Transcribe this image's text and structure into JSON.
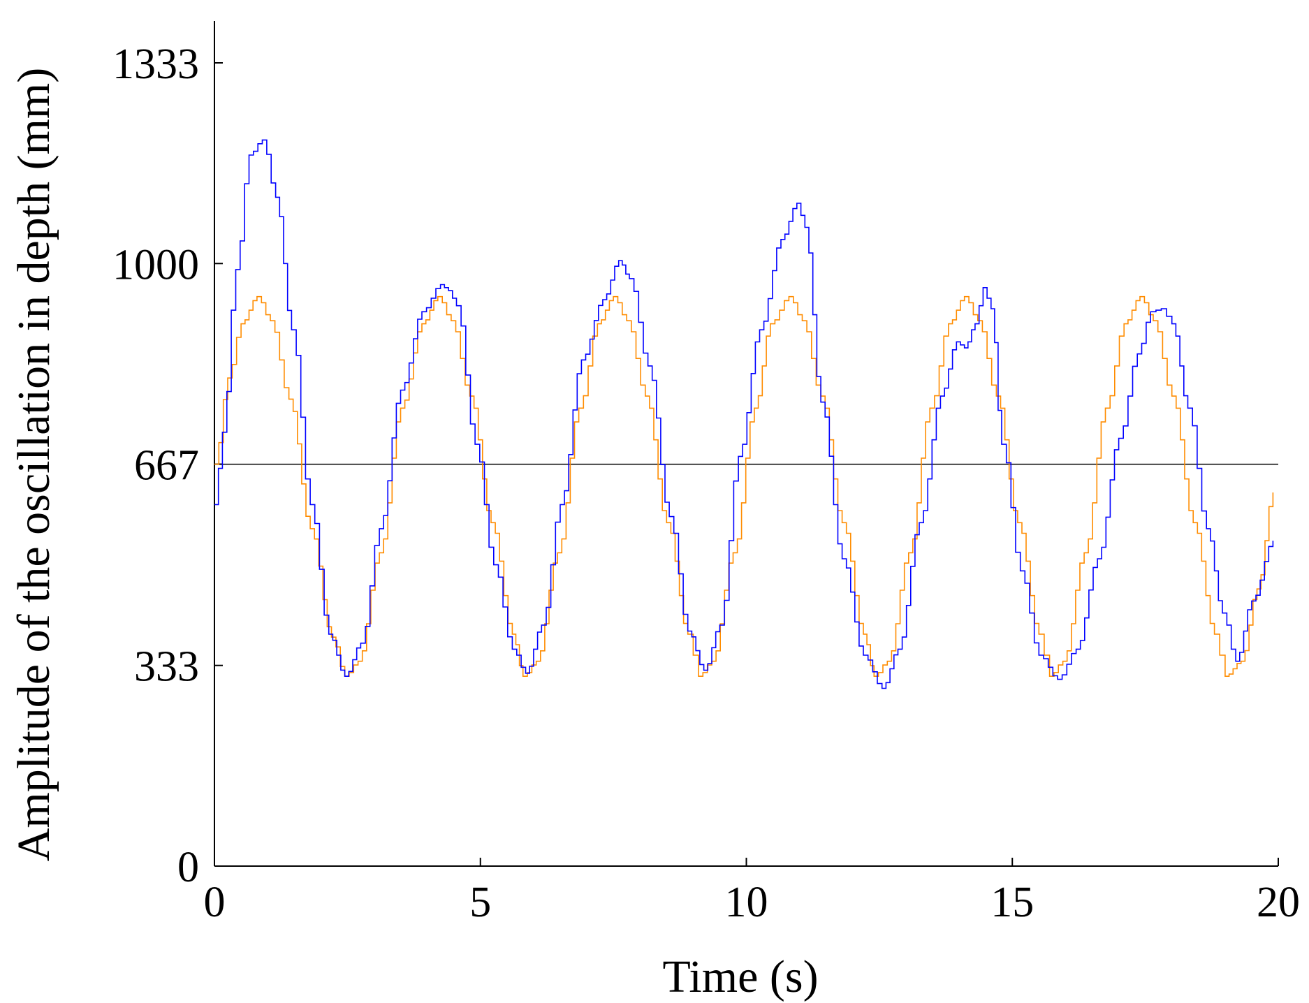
{
  "chart_data": {
    "type": "line",
    "title": "",
    "xlabel": "Time (s)",
    "ylabel": "Amplitude of the oscillation in depth (mm)",
    "xlim": [
      0,
      20
    ],
    "ylim": [
      0,
      1400
    ],
    "x_ticks": [
      "0",
      "5",
      "10",
      "15",
      "20"
    ],
    "y_ticks": [
      "0",
      "333",
      "667",
      "1000",
      "1333"
    ],
    "grid": false,
    "legend": "none",
    "reference_line": {
      "y": 667,
      "color": "#000000"
    },
    "series": [
      {
        "color": "#FF8C00",
        "x": [
          0,
          0.25,
          0.5,
          0.8,
          1.05,
          1.4,
          1.8,
          2.2,
          2.45,
          2.7,
          3.1,
          3.5,
          3.9,
          4.2,
          4.45,
          4.8,
          5.2,
          5.6,
          5.8,
          6.05,
          6.45,
          6.85,
          7.2,
          7.5,
          7.75,
          8.1,
          8.5,
          8.9,
          9.1,
          9.35,
          9.75,
          10.15,
          10.45,
          10.8,
          11.05,
          11.4,
          11.8,
          12.2,
          12.4,
          12.65,
          13.05,
          13.45,
          13.8,
          14.1,
          14.35,
          14.7,
          15.1,
          15.5,
          15.7,
          15.95,
          16.35,
          16.75,
          17.1,
          17.4,
          17.65,
          18.0,
          18.4,
          18.8,
          19.0,
          19.3,
          19.6,
          19.9
        ],
        "y": [
          667,
          810,
          900,
          945,
          905,
          775,
          560,
          380,
          315,
          340,
          520,
          760,
          900,
          945,
          905,
          780,
          570,
          385,
          315,
          340,
          520,
          760,
          900,
          945,
          905,
          780,
          570,
          385,
          315,
          340,
          520,
          760,
          900,
          945,
          905,
          780,
          570,
          385,
          315,
          340,
          520,
          760,
          900,
          945,
          905,
          780,
          570,
          385,
          315,
          340,
          520,
          760,
          900,
          945,
          905,
          780,
          570,
          385,
          315,
          340,
          460,
          620
        ]
      },
      {
        "color": "#0000FF",
        "x": [
          0,
          0.15,
          0.4,
          0.65,
          0.9,
          1.15,
          1.45,
          1.8,
          2.15,
          2.45,
          2.75,
          3.1,
          3.5,
          3.9,
          4.25,
          4.4,
          4.55,
          4.9,
          5.25,
          5.6,
          5.85,
          6.15,
          6.5,
          6.9,
          7.3,
          7.6,
          7.8,
          8.15,
          8.55,
          8.9,
          9.2,
          9.5,
          9.85,
          10.25,
          10.65,
          10.95,
          11.1,
          11.4,
          11.8,
          12.2,
          12.55,
          12.85,
          13.25,
          13.65,
          13.95,
          14.1,
          14.3,
          14.45,
          14.6,
          14.8,
          15.15,
          15.5,
          15.85,
          16.2,
          16.6,
          17.0,
          17.35,
          17.6,
          17.8,
          18.0,
          18.3,
          18.65,
          18.95,
          19.2,
          19.5,
          19.9
        ],
        "y": [
          600,
          720,
          990,
          1180,
          1205,
          1110,
          890,
          600,
          385,
          315,
          370,
          560,
          790,
          920,
          965,
          955,
          930,
          700,
          500,
          360,
          320,
          400,
          600,
          840,
          940,
          1005,
          975,
          830,
          580,
          390,
          325,
          400,
          680,
          890,
          1040,
          1100,
          1060,
          770,
          510,
          350,
          295,
          360,
          570,
          780,
          870,
          860,
          900,
          960,
          925,
          700,
          490,
          350,
          310,
          360,
          510,
          710,
          850,
          920,
          925,
          900,
          760,
          560,
          420,
          340,
          440,
          540
        ]
      }
    ]
  }
}
